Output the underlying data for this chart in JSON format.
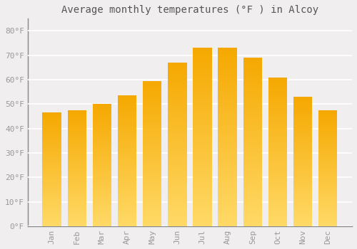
{
  "title": "Average monthly temperatures (°F ) in Alcoy",
  "months": [
    "Jan",
    "Feb",
    "Mar",
    "Apr",
    "May",
    "Jun",
    "Jul",
    "Aug",
    "Sep",
    "Oct",
    "Nov",
    "Dec"
  ],
  "values": [
    46.5,
    47.5,
    50.0,
    53.5,
    59.5,
    67.0,
    73.0,
    73.0,
    69.0,
    61.0,
    53.0,
    47.5
  ],
  "bar_color_top": "#F5A800",
  "bar_color_bottom": "#FFD966",
  "bar_edge_color": "none",
  "background_color": "#F0EEEE",
  "grid_color": "#FFFFFF",
  "yticks": [
    0,
    10,
    20,
    30,
    40,
    50,
    60,
    70,
    80
  ],
  "ylim": [
    0,
    85
  ],
  "title_fontsize": 10,
  "tick_fontsize": 8,
  "title_color": "#555555",
  "tick_color": "#999999",
  "font_family": "monospace"
}
